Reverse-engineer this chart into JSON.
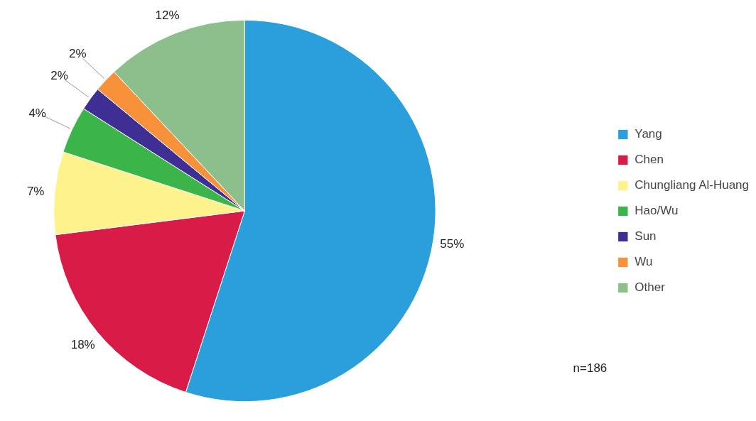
{
  "chart_data": {
    "type": "pie",
    "categories": [
      "Yang",
      "Chen",
      "Chungliang Al-Huang",
      "Hao/Wu",
      "Sun",
      "Wu",
      "Other"
    ],
    "values": [
      55,
      18,
      7,
      4,
      2,
      2,
      12
    ],
    "colors": [
      "#2b9fdc",
      "#d81b47",
      "#fdf28c",
      "#3bb54a",
      "#3f2f94",
      "#f7923a",
      "#8dbf8d"
    ],
    "value_labels": [
      "55%",
      "18%",
      "7%",
      "4%",
      "2%",
      "2%",
      "12%"
    ],
    "legend": "right",
    "annotations": [
      "n=186"
    ]
  }
}
